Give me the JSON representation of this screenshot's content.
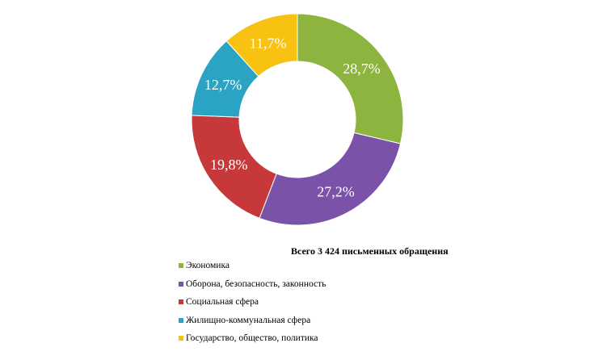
{
  "chart_data": {
    "type": "pie",
    "style": "donut",
    "caption": "Всего 3 424 письменных обращения",
    "slices": [
      {
        "label": "Экономика",
        "value": 28.7,
        "display": "28,7%",
        "color": "#8DB43F"
      },
      {
        "label": "Оборона, безопасность, законность",
        "value": 27.2,
        "display": "27,2%",
        "color": "#7A53A9"
      },
      {
        "label": "Социальная сфера",
        "value": 19.8,
        "display": "19,8%",
        "color": "#C7383A"
      },
      {
        "label": "Жилищно-коммунальная сфера",
        "value": 12.7,
        "display": "12,7%",
        "color": "#2BA3C2"
      },
      {
        "label": "Государство, общество, политика",
        "value": 11.7,
        "display": "11,7%",
        "color": "#F7C212"
      }
    ],
    "legend_position": "bottom-left"
  }
}
